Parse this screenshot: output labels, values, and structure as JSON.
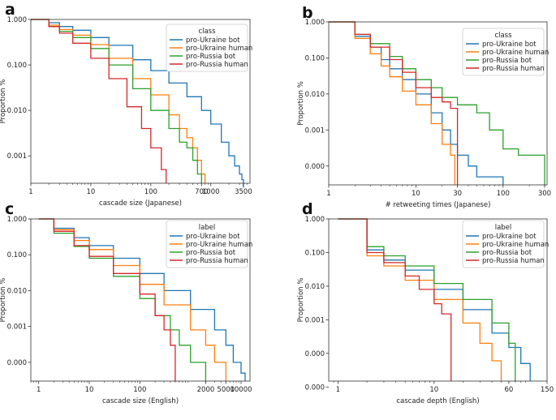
{
  "chart_data": [
    {
      "type": "line",
      "panel_letter": "a",
      "xlabel": "cascade size (Japanese)",
      "ylabel": "Proportion %",
      "x_ticks": [
        "1",
        "10",
        "100",
        "700",
        "1000",
        "3500"
      ],
      "y_ticks": [
        "1.000",
        "0.100",
        "0.010",
        "0.001"
      ],
      "legend": {
        "title": "class",
        "position": "top-right"
      },
      "series": [
        {
          "name": "pro-Ukraine bot",
          "color": "#1f77b4",
          "x": [
            1,
            2,
            3,
            5,
            10,
            20,
            50,
            100,
            200,
            400,
            700,
            1000,
            1500,
            2000,
            2500,
            3000,
            3300,
            3500
          ],
          "y": [
            1,
            0.85,
            0.7,
            0.58,
            0.4,
            0.27,
            0.13,
            0.075,
            0.04,
            0.02,
            0.01,
            0.005,
            0.002,
            0.001,
            0.0006,
            0.0004,
            0.0003,
            0.0002
          ]
        },
        {
          "name": "pro-Ukraine human",
          "color": "#ff7f0e",
          "x": [
            1,
            2,
            3,
            5,
            10,
            20,
            50,
            100,
            200,
            300,
            400,
            500,
            600,
            700,
            800
          ],
          "y": [
            1,
            0.75,
            0.6,
            0.45,
            0.28,
            0.14,
            0.05,
            0.022,
            0.008,
            0.004,
            0.0025,
            0.0015,
            0.0008,
            0.0004,
            0.00025
          ]
        },
        {
          "name": "pro-Russia bot",
          "color": "#2ca02c",
          "x": [
            1,
            2,
            3,
            5,
            10,
            20,
            50,
            100,
            200,
            300,
            400,
            500,
            600,
            700
          ],
          "y": [
            1,
            0.7,
            0.55,
            0.4,
            0.23,
            0.1,
            0.03,
            0.01,
            0.004,
            0.002,
            0.0015,
            0.0008,
            0.0004,
            0.00025
          ]
        },
        {
          "name": "pro-Russia human",
          "color": "#d62728",
          "x": [
            1,
            2,
            3,
            5,
            10,
            20,
            40,
            70,
            100,
            150,
            180
          ],
          "y": [
            1,
            0.7,
            0.5,
            0.3,
            0.14,
            0.05,
            0.012,
            0.004,
            0.0015,
            0.0005,
            0.00025
          ]
        }
      ]
    },
    {
      "type": "line",
      "panel_letter": "b",
      "xlabel": "# retweeting times (Japanese)",
      "ylabel": "Proportion %",
      "x_ticks": [
        "1",
        "10",
        "30",
        "100",
        "300"
      ],
      "y_ticks": [
        "1.000",
        "0.100",
        "0.010",
        "0.001",
        "0.000"
      ],
      "legend": {
        "title": "class",
        "position": "top-right"
      },
      "series": [
        {
          "name": "pro-Ukraine bot",
          "color": "#1f77b4",
          "x": [
            1,
            2,
            3,
            4,
            5,
            7,
            10,
            15,
            20,
            25,
            30,
            40,
            50,
            100
          ],
          "y": [
            1,
            0.4,
            0.2,
            0.09,
            0.05,
            0.025,
            0.01,
            0.003,
            0.001,
            0.0004,
            0.0002,
            0.0001,
            5e-05,
            5e-05
          ]
        },
        {
          "name": "pro-Ukraine human",
          "color": "#ff7f0e",
          "x": [
            1,
            2,
            3,
            4,
            5,
            7,
            10,
            15,
            20,
            25,
            28
          ],
          "y": [
            1,
            0.35,
            0.13,
            0.06,
            0.03,
            0.012,
            0.005,
            0.0015,
            0.0004,
            0.0002,
            3e-05
          ]
        },
        {
          "name": "pro-Russia bot",
          "color": "#2ca02c",
          "x": [
            1,
            2,
            3,
            5,
            7,
            10,
            15,
            20,
            30,
            50,
            70,
            100,
            150,
            300
          ],
          "y": [
            1,
            0.45,
            0.25,
            0.11,
            0.05,
            0.025,
            0.015,
            0.008,
            0.005,
            0.003,
            0.001,
            0.0003,
            0.0002,
            3e-05
          ]
        },
        {
          "name": "pro-Russia human",
          "color": "#d62728",
          "x": [
            1,
            2,
            3,
            5,
            7,
            10,
            15,
            20,
            25,
            30
          ],
          "y": [
            1,
            0.45,
            0.2,
            0.09,
            0.04,
            0.015,
            0.008,
            0.006,
            0.004,
            3e-05
          ]
        }
      ]
    },
    {
      "type": "line",
      "panel_letter": "c",
      "xlabel": "cascade size (English)",
      "ylabel": "Proportion %",
      "x_ticks": [
        "1",
        "10",
        "100",
        "2000",
        "5000",
        "10000"
      ],
      "y_ticks": [
        "1.000",
        "0.100",
        "0.010",
        "0.001",
        "0.000"
      ],
      "legend": {
        "title": "label",
        "position": "top-right"
      },
      "series": [
        {
          "name": "pro-Ukraine bot",
          "color": "#1f77b4",
          "x": [
            1,
            2,
            5,
            10,
            30,
            100,
            300,
            1000,
            3000,
            5000,
            7000,
            10000,
            12000
          ],
          "y": [
            1,
            0.55,
            0.3,
            0.18,
            0.08,
            0.03,
            0.01,
            0.003,
            0.0008,
            0.0003,
            0.0001,
            5e-05,
            3e-05
          ]
        },
        {
          "name": "pro-Ukraine human",
          "color": "#ff7f0e",
          "x": [
            1,
            2,
            5,
            10,
            30,
            100,
            300,
            1000,
            2000,
            3000,
            5000
          ],
          "y": [
            1,
            0.5,
            0.25,
            0.14,
            0.05,
            0.015,
            0.004,
            0.0008,
            0.0003,
            0.0001,
            3e-05
          ]
        },
        {
          "name": "pro-Russia bot",
          "color": "#2ca02c",
          "x": [
            1,
            2,
            5,
            10,
            30,
            100,
            200,
            400,
            600,
            1000,
            2000
          ],
          "y": [
            1,
            0.4,
            0.17,
            0.08,
            0.025,
            0.006,
            0.002,
            0.0008,
            0.0003,
            0.0001,
            3e-05
          ]
        },
        {
          "name": "pro-Russia human",
          "color": "#d62728",
          "x": [
            1,
            2,
            5,
            10,
            30,
            100,
            200,
            300,
            400,
            500
          ],
          "y": [
            1,
            0.45,
            0.18,
            0.09,
            0.03,
            0.008,
            0.002,
            0.0008,
            0.0003,
            3e-05
          ]
        }
      ]
    },
    {
      "type": "line",
      "panel_letter": "d",
      "xlabel": "cascade depth (English)",
      "ylabel": "Proportion %",
      "x_ticks": [
        "1",
        "10",
        "60",
        "150"
      ],
      "y_ticks": [
        "1.000",
        "0.100",
        "0.010",
        "0.001",
        "0.000",
        "0.000"
      ],
      "legend": {
        "title": "label",
        "position": "top-right"
      },
      "series": [
        {
          "name": "pro-Ukraine bot",
          "color": "#1f77b4",
          "x": [
            1,
            2,
            3,
            5,
            10,
            20,
            40,
            60,
            80,
            100
          ],
          "y": [
            1,
            0.12,
            0.06,
            0.03,
            0.008,
            0.002,
            0.0004,
            0.00015,
            5e-05,
            2e-05
          ]
        },
        {
          "name": "pro-Ukraine human",
          "color": "#ff7f0e",
          "x": [
            1,
            2,
            3,
            5,
            10,
            20,
            30,
            40,
            50
          ],
          "y": [
            1,
            0.08,
            0.04,
            0.015,
            0.004,
            0.0008,
            0.0002,
            6e-05,
            2e-05
          ]
        },
        {
          "name": "pro-Russia bot",
          "color": "#2ca02c",
          "x": [
            1,
            2,
            3,
            5,
            10,
            20,
            40,
            60,
            70
          ],
          "y": [
            1,
            0.15,
            0.08,
            0.04,
            0.012,
            0.004,
            0.0008,
            0.0002,
            2e-05
          ]
        },
        {
          "name": "pro-Russia human",
          "color": "#d62728",
          "x": [
            1,
            2,
            3,
            5,
            7,
            10,
            12,
            15
          ],
          "y": [
            1,
            0.1,
            0.05,
            0.02,
            0.008,
            0.003,
            0.0015,
            2e-05
          ]
        }
      ]
    }
  ]
}
